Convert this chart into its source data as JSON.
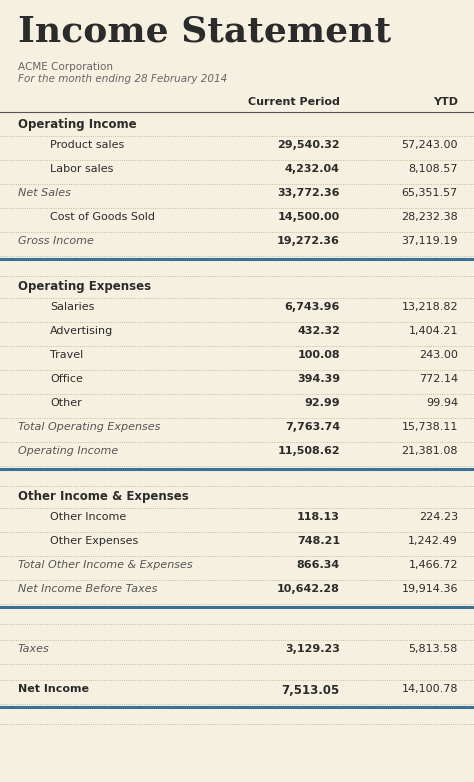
{
  "title": "Income Statement",
  "subtitle1": "ACME Corporation",
  "subtitle2": "For the month ending 28 February 2014",
  "col1_header": "Current Period",
  "col2_header": "YTD",
  "bg_color": "#f5f0e0",
  "title_color": "#2b2b2b",
  "subtitle_color": "#666666",
  "header_color": "#2b2b2b",
  "section_header_color": "#2b2b2b",
  "italic_color": "#555555",
  "normal_color": "#2b2b2b",
  "bold_color": "#2b2b2b",
  "dot_line_color": "#b8aa90",
  "thick_line_color": "#3a6f96",
  "dark_line_color": "#555555",
  "sections": [
    {
      "header": "Operating Income",
      "rows": [
        {
          "label": "Product sales",
          "cp": "29,540.32",
          "ytd": "57,243.00",
          "style": "normal"
        },
        {
          "label": "Labor sales",
          "cp": "4,232.04",
          "ytd": "8,108.57",
          "style": "normal"
        },
        {
          "label": "Net Sales",
          "cp": "33,772.36",
          "ytd": "65,351.57",
          "style": "italic"
        },
        {
          "label": "Cost of Goods Sold",
          "cp": "14,500.00",
          "ytd": "28,232.38",
          "style": "normal"
        },
        {
          "label": "Gross Income",
          "cp": "19,272.36",
          "ytd": "37,119.19",
          "style": "italic"
        }
      ],
      "thick_line_after": true
    },
    {
      "header": "Operating Expenses",
      "rows": [
        {
          "label": "Salaries",
          "cp": "6,743.96",
          "ytd": "13,218.82",
          "style": "normal"
        },
        {
          "label": "Advertising",
          "cp": "432.32",
          "ytd": "1,404.21",
          "style": "normal"
        },
        {
          "label": "Travel",
          "cp": "100.08",
          "ytd": "243.00",
          "style": "normal"
        },
        {
          "label": "Office",
          "cp": "394.39",
          "ytd": "772.14",
          "style": "normal"
        },
        {
          "label": "Other",
          "cp": "92.99",
          "ytd": "99.94",
          "style": "normal"
        },
        {
          "label": "Total Operating Expenses",
          "cp": "7,763.74",
          "ytd": "15,738.11",
          "style": "italic"
        },
        {
          "label": "Operating Income",
          "cp": "11,508.62",
          "ytd": "21,381.08",
          "style": "italic"
        }
      ],
      "thick_line_after": true
    },
    {
      "header": "Other Income & Expenses",
      "rows": [
        {
          "label": "Other Income",
          "cp": "118.13",
          "ytd": "224.23",
          "style": "normal"
        },
        {
          "label": "Other Expenses",
          "cp": "748.21",
          "ytd": "1,242.49",
          "style": "normal"
        },
        {
          "label": "Total Other Income & Expenses",
          "cp": "866.34",
          "ytd": "1,466.72",
          "style": "italic"
        },
        {
          "label": "Net Income Before Taxes",
          "cp": "10,642.28",
          "ytd": "19,914.36",
          "style": "italic"
        }
      ],
      "thick_line_after": true
    },
    {
      "header": null,
      "rows": [
        {
          "label": "Taxes",
          "cp": "3,129.23",
          "ytd": "5,813.58",
          "style": "italic"
        }
      ],
      "thick_line_after": false,
      "gap_before": true,
      "dotted_before": true
    },
    {
      "header": null,
      "rows": [
        {
          "label": "Net Income",
          "cp": "7,513.05",
          "ytd": "14,100.78",
          "style": "bold_header"
        }
      ],
      "thick_line_after": true,
      "gap_before": true,
      "dotted_before": true
    }
  ],
  "figw": 4.74,
  "figh": 7.82,
  "dpi": 100
}
